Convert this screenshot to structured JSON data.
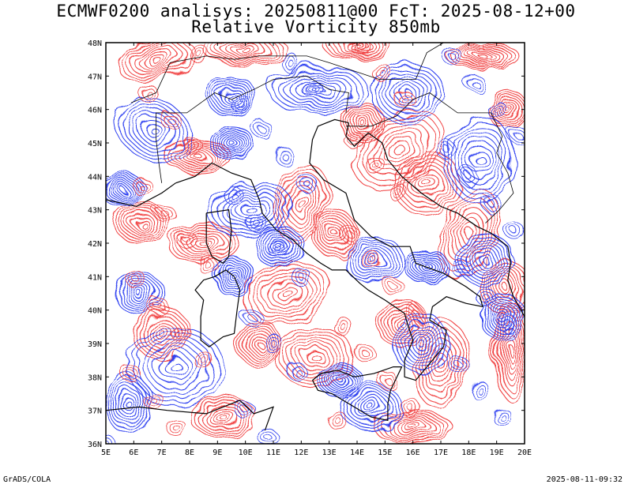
{
  "title_line1": "ECMWF0200 analisys: 20250811@00 FcT: 2025-08-12+00",
  "title_line2": "Relative Vorticity 850mb",
  "map": {
    "lat_labels": [
      "48N",
      "47N",
      "46N",
      "45N",
      "44N",
      "43N",
      "42N",
      "41N",
      "40N",
      "39N",
      "38N",
      "37N",
      "36N"
    ],
    "lon_labels": [
      "5E",
      "6E",
      "7E",
      "8E",
      "9E",
      "10E",
      "11E",
      "12E",
      "13E",
      "14E",
      "15E",
      "16E",
      "17E",
      "18E",
      "19E",
      "20E"
    ],
    "lat_range": [
      36,
      48
    ],
    "lon_range": [
      5,
      20
    ],
    "positive_color": "#f03c3c",
    "negative_color": "#2a3cf0",
    "coastline_color": "#000000"
  },
  "footer": {
    "left": "GrADS/COLA",
    "right": "2025-08-11-09:32"
  }
}
